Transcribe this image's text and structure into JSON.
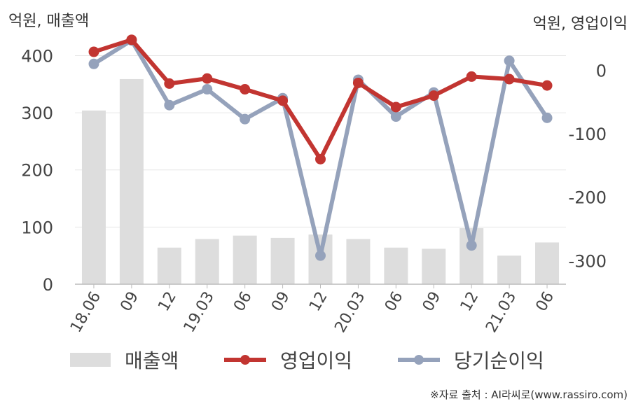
{
  "units": {
    "left": "억원, 매출액",
    "right": "억원, 영업이익"
  },
  "source": "※자료 출처 : AI라씨로(www.rassiro.com)",
  "chart_data": {
    "type": "bar+line",
    "categories": [
      "18.06",
      "09",
      "12",
      "19.03",
      "06",
      "09",
      "12",
      "20.03",
      "06",
      "09",
      "12",
      "21.03",
      "06"
    ],
    "y_left": {
      "ticks": [
        0,
        100,
        200,
        300,
        400
      ],
      "range": [
        0,
        430
      ]
    },
    "y_right": {
      "ticks": [
        0,
        -100,
        -200,
        -300
      ],
      "range": [
        -337,
        50
      ]
    },
    "grid": true,
    "legend_position": "bottom",
    "series": [
      {
        "name": "매출액",
        "type": "bar",
        "axis": "left",
        "color": "#dddddd",
        "values": [
          304,
          359,
          64,
          79,
          85,
          81,
          87,
          79,
          64,
          62,
          98,
          50,
          73
        ]
      },
      {
        "name": "영업이익",
        "type": "line",
        "axis": "right",
        "color": "#c23531",
        "values": [
          29,
          48,
          -21,
          -13,
          -30,
          -48,
          -140,
          -20,
          -58,
          -40,
          -10,
          -14,
          -24
        ]
      },
      {
        "name": "당기순이익",
        "type": "line",
        "axis": "right",
        "color": "#95a2bb",
        "values": [
          10,
          47,
          -55,
          -30,
          -77,
          -44,
          -292,
          -15,
          -73,
          -35,
          -276,
          15,
          -75
        ]
      }
    ]
  }
}
